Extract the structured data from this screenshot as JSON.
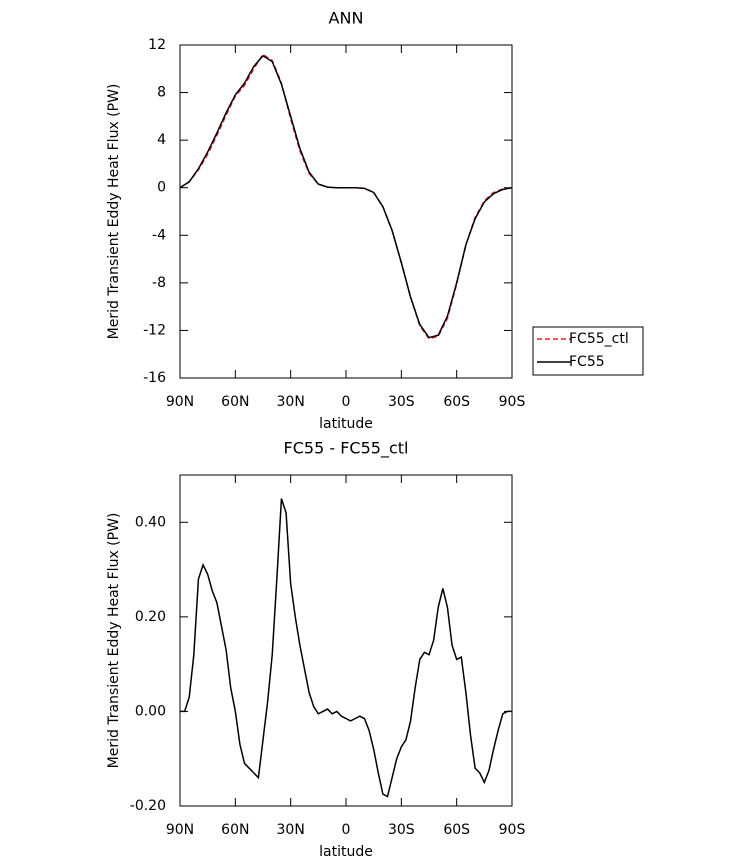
{
  "chart_data": [
    {
      "type": "line",
      "title": "ANN",
      "xlabel": "latitude",
      "ylabel": "Merid Transient Eddy Heat Flux (PW)",
      "x": [
        90,
        85,
        80,
        75,
        70,
        65,
        60,
        55,
        50,
        45,
        40,
        35,
        30,
        25,
        20,
        15,
        10,
        5,
        0,
        -5,
        -10,
        -15,
        -20,
        -25,
        -30,
        -35,
        -40,
        -45,
        -50,
        -55,
        -60,
        -65,
        -70,
        -75,
        -80,
        -85,
        -90
      ],
      "series": [
        {
          "name": "FC55_ctl",
          "color": "#e8202a",
          "linestyle": "dashed",
          "values": [
            0,
            0.5,
            1.5,
            2.8,
            4.4,
            6.1,
            7.7,
            8.6,
            10.0,
            11.2,
            10.7,
            8.8,
            5.8,
            3.1,
            1.2,
            0.3,
            0.05,
            0,
            0,
            0,
            -0.05,
            -0.4,
            -1.6,
            -3.6,
            -6.3,
            -9.2,
            -11.6,
            -12.7,
            -12.5,
            -11.0,
            -8.1,
            -4.8,
            -2.5,
            -1.1,
            -0.4,
            -0.1,
            0
          ]
        },
        {
          "name": "FC55",
          "color": "#000000",
          "linestyle": "solid",
          "values": [
            0,
            0.5,
            1.6,
            3.0,
            4.6,
            6.3,
            7.8,
            8.8,
            10.2,
            11.1,
            10.6,
            8.7,
            6.0,
            3.3,
            1.3,
            0.3,
            0.05,
            0,
            0,
            0,
            -0.05,
            -0.4,
            -1.6,
            -3.6,
            -6.3,
            -9.2,
            -11.5,
            -12.6,
            -12.4,
            -10.8,
            -8.0,
            -4.8,
            -2.6,
            -1.2,
            -0.5,
            -0.15,
            0
          ]
        }
      ],
      "xlim": [
        90,
        -90
      ],
      "xticks": [
        {
          "value": 90,
          "label": "90N"
        },
        {
          "value": 60,
          "label": "60N"
        },
        {
          "value": 30,
          "label": "30N"
        },
        0,
        {
          "value": -30,
          "label": "30S"
        },
        {
          "value": -60,
          "label": "60S"
        },
        {
          "value": -90,
          "label": "90S"
        }
      ],
      "ylim": [
        -16,
        12
      ],
      "yticks": [
        12,
        8,
        4,
        0,
        -4,
        -8,
        -12,
        -16
      ],
      "legend": "right"
    },
    {
      "type": "line",
      "title": "FC55 - FC55_ctl",
      "xlabel": "latitude",
      "ylabel": "Merid Transient Eddy Heat Flux (PW)",
      "x": [
        90,
        87.5,
        85,
        82.5,
        80,
        77.5,
        75,
        72.5,
        70,
        67.5,
        65,
        62.5,
        60,
        57.5,
        55,
        52.5,
        50,
        47.5,
        45,
        42.5,
        40,
        37.5,
        35,
        32.5,
        30,
        27.5,
        25,
        22.5,
        20,
        17.5,
        15,
        12.5,
        10,
        7.5,
        5,
        2.5,
        0,
        -2.5,
        -5,
        -7.5,
        -10,
        -12.5,
        -15,
        -17.5,
        -20,
        -22.5,
        -25,
        -27.5,
        -30,
        -32.5,
        -35,
        -37.5,
        -40,
        -42.5,
        -45,
        -47.5,
        -50,
        -52.5,
        -55,
        -57.5,
        -60,
        -62.5,
        -65,
        -67.5,
        -70,
        -72.5,
        -75,
        -77.5,
        -80,
        -82.5,
        -85,
        -87.5,
        -90
      ],
      "series": [
        {
          "color": "#000000",
          "values": [
            0,
            0,
            0.03,
            0.12,
            0.28,
            0.31,
            0.29,
            0.255,
            0.23,
            0.18,
            0.13,
            0.05,
            0,
            -0.07,
            -0.11,
            -0.12,
            -0.13,
            -0.14,
            -0.06,
            0.02,
            0.12,
            0.28,
            0.45,
            0.42,
            0.27,
            0.2,
            0.14,
            0.09,
            0.04,
            0.01,
            -0.005,
            0,
            0.005,
            -0.005,
            0,
            -0.01,
            -0.015,
            -0.02,
            -0.015,
            -0.01,
            -0.015,
            -0.04,
            -0.08,
            -0.13,
            -0.175,
            -0.18,
            -0.14,
            -0.1,
            -0.075,
            -0.06,
            -0.02,
            0.05,
            0.11,
            0.125,
            0.12,
            0.15,
            0.22,
            0.26,
            0.22,
            0.14,
            0.11,
            0.115,
            0.04,
            -0.05,
            -0.12,
            -0.13,
            -0.15,
            -0.125,
            -0.08,
            -0.04,
            -0.005,
            0,
            0
          ]
        }
      ],
      "xlim": [
        90,
        -90
      ],
      "xticks": [
        {
          "value": 90,
          "label": "90N"
        },
        {
          "value": 60,
          "label": "60N"
        },
        {
          "value": 30,
          "label": "30N"
        },
        0,
        {
          "value": -30,
          "label": "30S"
        },
        {
          "value": -60,
          "label": "60S"
        },
        {
          "value": -90,
          "label": "90S"
        }
      ],
      "ylim": [
        -0.2,
        0.5
      ],
      "yticks": [
        {
          "value": 0.4,
          "label": "0.40"
        },
        {
          "value": 0.2,
          "label": "0.20"
        },
        {
          "value": 0,
          "label": "0.00"
        },
        {
          "value": -0.2,
          "label": "-0.20"
        }
      ]
    }
  ]
}
